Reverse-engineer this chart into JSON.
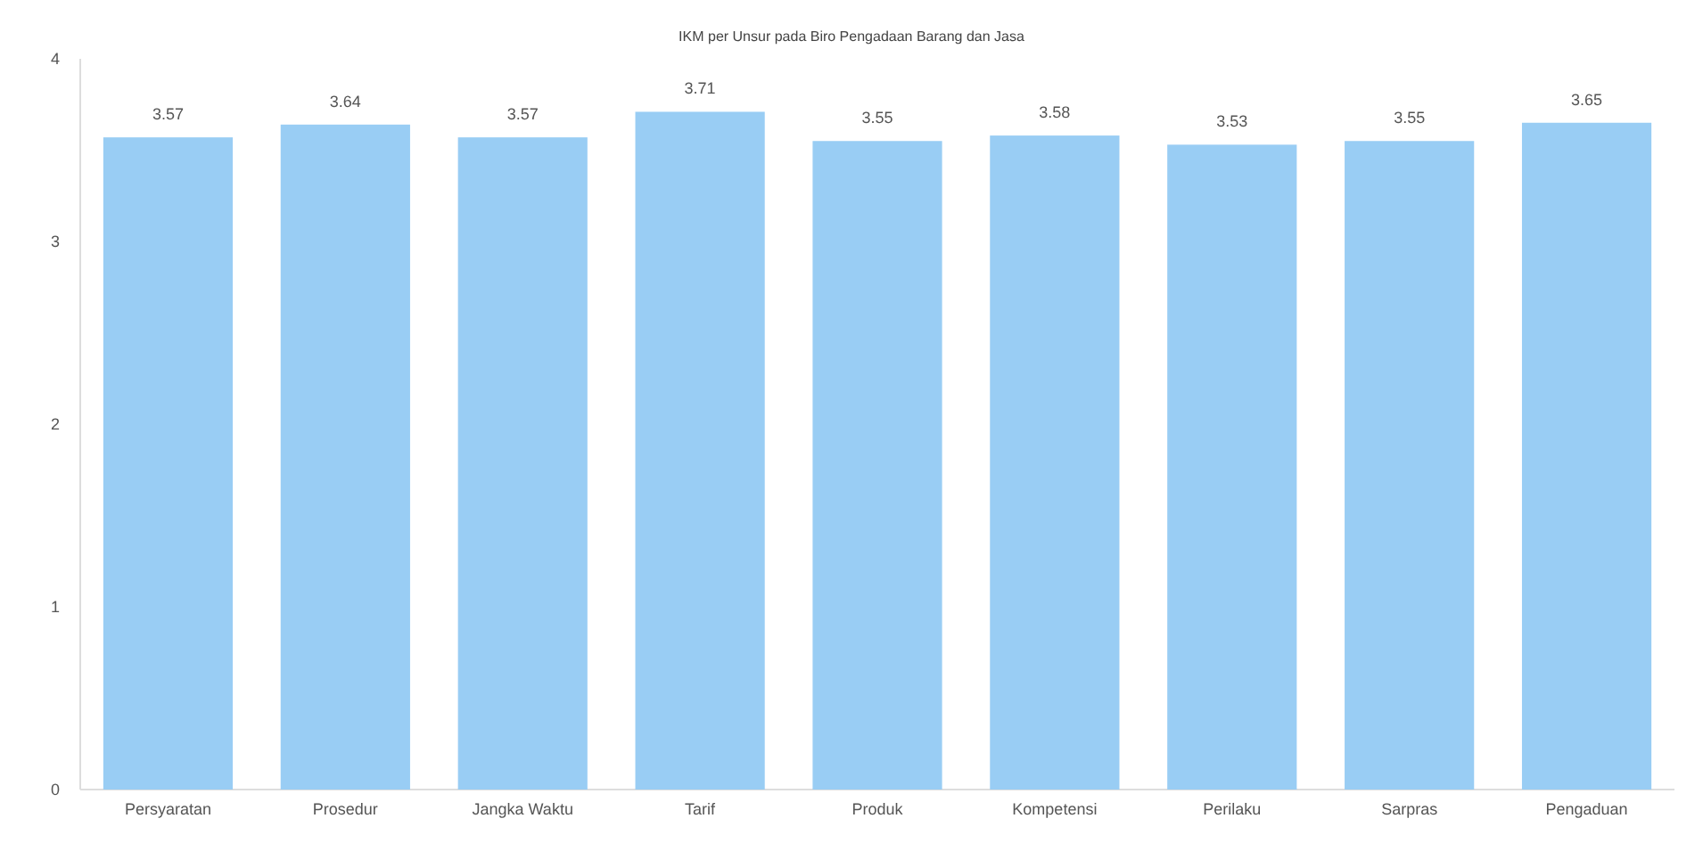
{
  "chart_data": {
    "type": "bar",
    "subtitle": "IKM per Unsur pada Biro Pengadaan Barang dan Jasa",
    "categories": [
      "Persyaratan",
      "Prosedur",
      "Jangka Waktu",
      "Tarif",
      "Produk",
      "Kompetensi",
      "Perilaku",
      "Sarpras",
      "Pengaduan"
    ],
    "values": [
      3.57,
      3.64,
      3.57,
      3.71,
      3.55,
      3.58,
      3.53,
      3.55,
      3.65
    ],
    "color": "#99cdf4",
    "ylim": [
      0,
      4
    ],
    "yticks": [
      0,
      1,
      2,
      3,
      4
    ],
    "data_labels": true
  }
}
